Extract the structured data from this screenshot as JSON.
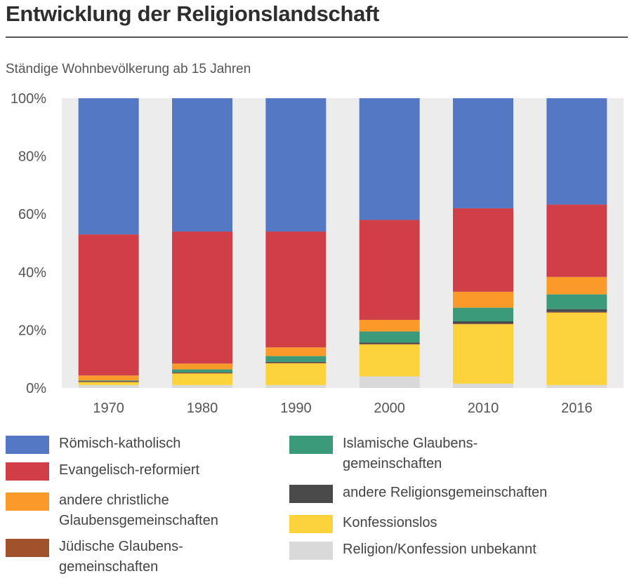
{
  "chart_data": {
    "type": "bar",
    "stacked": true,
    "title": "Entwicklung der Religionslandschaft",
    "subtitle": "Ständige Wohnbevölkerung ab 15 Jahren",
    "categories": [
      "1970",
      "1980",
      "1990",
      "2000",
      "2010",
      "2016"
    ],
    "yticks": [
      "0%",
      "20%",
      "40%",
      "60%",
      "80%",
      "100%"
    ],
    "ylim": [
      0,
      100
    ],
    "grid": false,
    "legend_position": "bottom",
    "series": [
      {
        "name": "Religion/Konfession unbekannt",
        "color": "#d9d9d9",
        "values": [
          1,
          1,
          1,
          4,
          1.5,
          1
        ]
      },
      {
        "name": "Konfessionslos",
        "color": "#fdd33b",
        "values": [
          1,
          4,
          7.5,
          11,
          20.5,
          25
        ]
      },
      {
        "name": "Jüdische Glaubensgemeinschaften",
        "color": "#a0522d",
        "values": [
          0.2,
          0.2,
          0.2,
          0.2,
          0.2,
          0.2
        ]
      },
      {
        "name": "andere Religionsgemeinschaften",
        "color": "#4a4a4a",
        "values": [
          0.2,
          0.2,
          0.3,
          0.5,
          0.8,
          1
        ]
      },
      {
        "name": "Islamische Glaubensgemeinschaften",
        "color": "#3a9a7a",
        "values": [
          0.2,
          1,
          2,
          3.8,
          4.7,
          5.1
        ]
      },
      {
        "name": "andere christliche Glaubensgemeinschaften",
        "color": "#fa9a28",
        "values": [
          1.7,
          2,
          3,
          4,
          5.5,
          6
        ]
      },
      {
        "name": "Evangelisch-reformiert",
        "color": "#d03f48",
        "values": [
          48.7,
          45.6,
          40,
          34.5,
          28.8,
          25
        ]
      },
      {
        "name": "Römisch-katholisch",
        "color": "#5478c4",
        "values": [
          47,
          46,
          46,
          42,
          38,
          36.7
        ]
      }
    ]
  },
  "legend": {
    "left": [
      {
        "label": "Römisch-katholisch",
        "color": "#5478c4"
      },
      {
        "label": "Evangelisch-reformiert",
        "color": "#d03f48"
      },
      {
        "label": "andere christliche\nGlaubensgemeinschaften",
        "color": "#fa9a28"
      },
      {
        "label": "Jüdische Glaubens-\ngemeinschaften",
        "color": "#a0522d"
      }
    ],
    "right": [
      {
        "label": "Islamische Glaubens-\ngemeinschaften",
        "color": "#3a9a7a"
      },
      {
        "label": "andere Religionsgemeinschaften",
        "color": "#4a4a4a"
      },
      {
        "label": "Konfessionslos",
        "color": "#fdd33b"
      },
      {
        "label": "Religion/Konfession unbekannt",
        "color": "#d9d9d9"
      }
    ]
  }
}
